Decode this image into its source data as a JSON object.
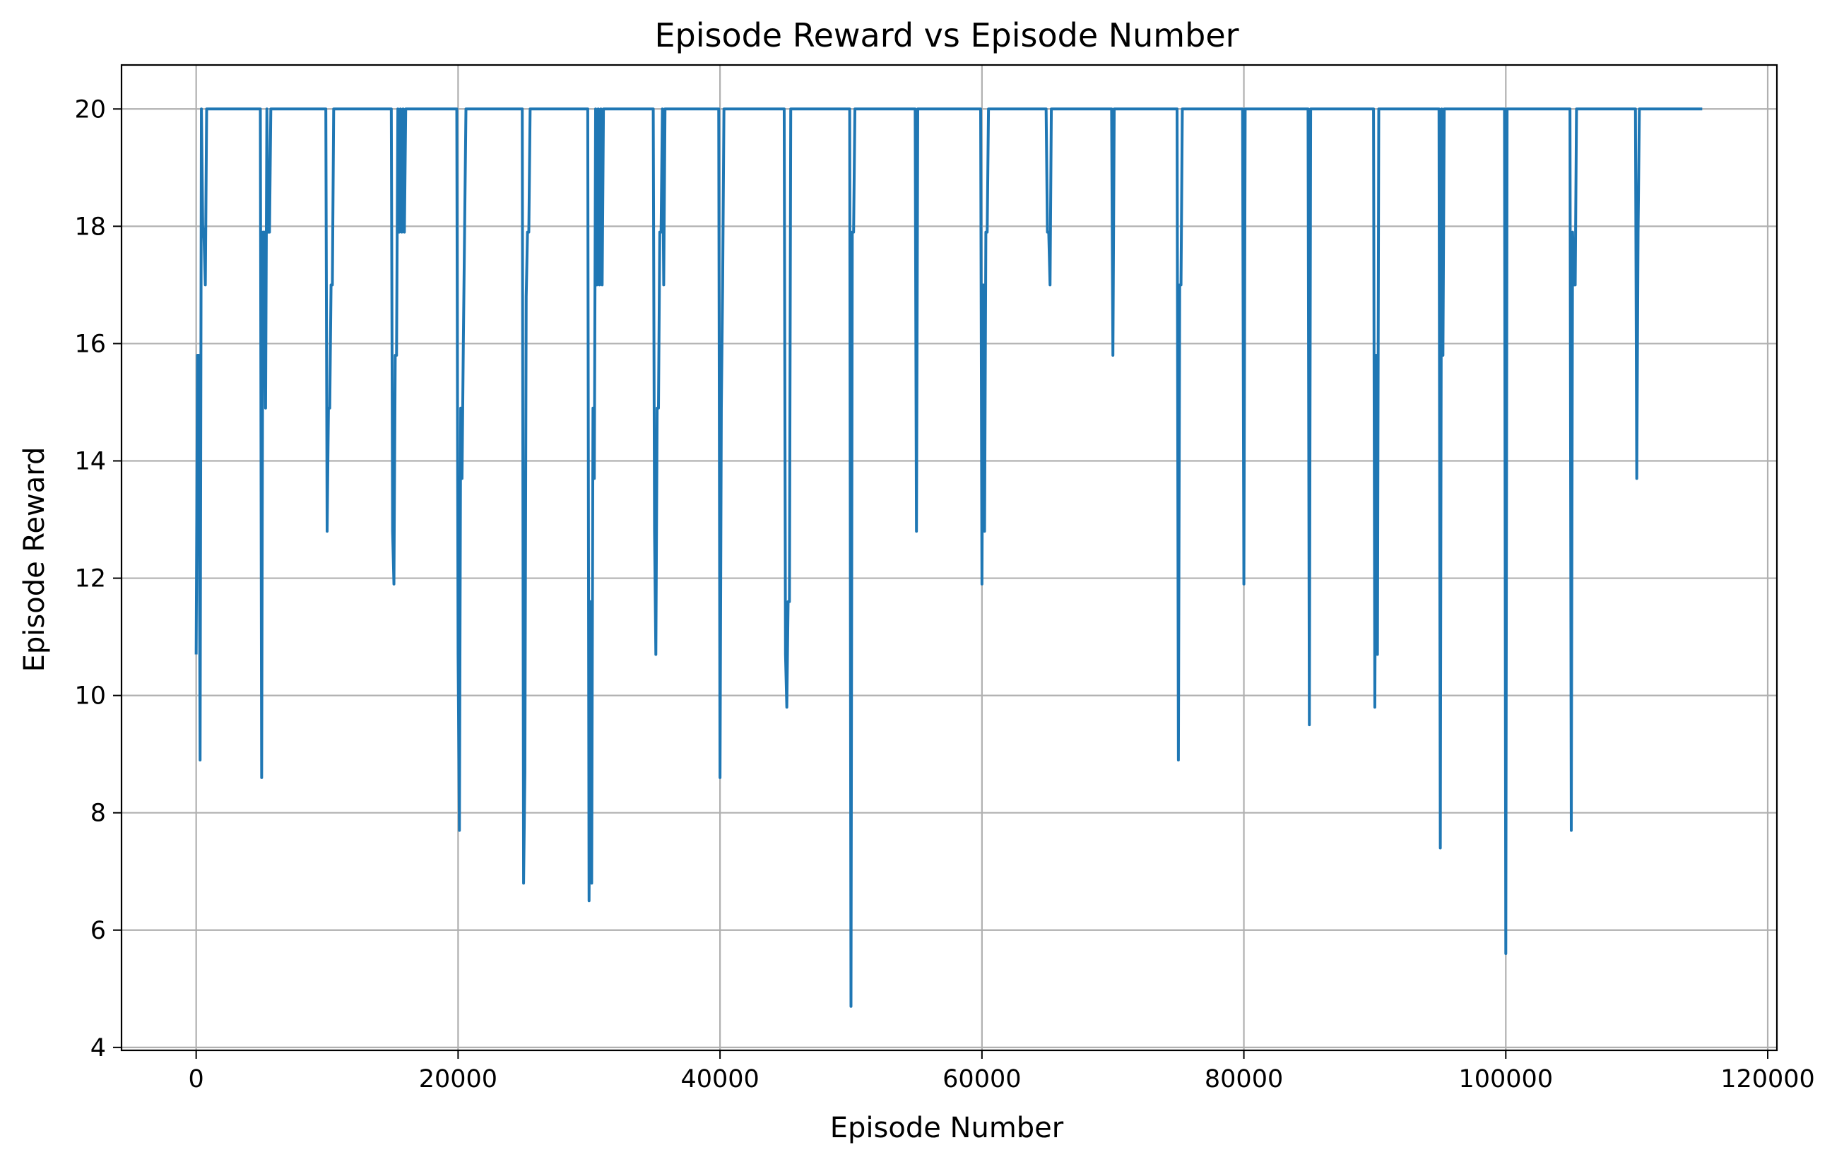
{
  "chart_data": {
    "type": "line",
    "title": "Episode Reward vs Episode Number",
    "xlabel": "Episode Number",
    "ylabel": "Episode Reward",
    "xlim": [
      -5700,
      120700
    ],
    "ylim": [
      3.95,
      20.75
    ],
    "xticks": [
      0,
      20000,
      40000,
      60000,
      80000,
      100000,
      120000
    ],
    "yticks": [
      4,
      6,
      8,
      10,
      12,
      14,
      16,
      18,
      20
    ],
    "grid": true,
    "series": [
      {
        "color": "#1f77b4",
        "x": [
          0,
          100,
          200,
          300,
          400,
          500,
          600,
          700,
          800,
          900,
          1000,
          4900,
          5000,
          5100,
          5200,
          5300,
          5400,
          5500,
          5600,
          5700,
          5800,
          5900,
          6000,
          9900,
          10000,
          10100,
          10200,
          10300,
          10400,
          10500,
          10600,
          10700,
          10800,
          10900,
          11000,
          14900,
          15000,
          15100,
          15200,
          15300,
          15400,
          15500,
          15600,
          15700,
          15800,
          15900,
          16000,
          16100,
          16200,
          16300,
          19900,
          20000,
          20100,
          20200,
          20300,
          20400,
          20500,
          20600,
          24900,
          25000,
          25100,
          25200,
          25300,
          25400,
          25500,
          25600,
          29900,
          30000,
          30100,
          30200,
          30300,
          30400,
          30500,
          30600,
          30700,
          30800,
          30900,
          31000,
          31100,
          31200,
          31300,
          31400,
          34900,
          35000,
          35100,
          35200,
          35300,
          35400,
          35500,
          35600,
          35700,
          35800,
          35900,
          36000,
          36100,
          39900,
          40000,
          40100,
          40200,
          40300,
          40400,
          44900,
          45000,
          45100,
          45200,
          45300,
          45400,
          45500,
          49900,
          50000,
          50100,
          50200,
          50300,
          50400,
          50500,
          54900,
          55000,
          55100,
          55200,
          59900,
          60000,
          60100,
          60200,
          60300,
          60400,
          60500,
          60600,
          64900,
          65000,
          65100,
          65200,
          65300,
          65400,
          65500,
          69900,
          70000,
          70100,
          70200,
          74900,
          75000,
          75100,
          75200,
          75300,
          75400,
          75500,
          79900,
          80000,
          80100,
          80200,
          84900,
          85000,
          85100,
          85200,
          89900,
          90000,
          90100,
          90200,
          90300,
          90400,
          90500,
          94900,
          95000,
          95100,
          95200,
          95300,
          99900,
          100000,
          100100,
          104900,
          105000,
          105100,
          105200,
          105300,
          105400,
          105500,
          105600,
          105700,
          109900,
          110000,
          110100,
          110200,
          110300,
          110400,
          115000
        ],
        "y": [
          10.7,
          15.8,
          15.8,
          8.9,
          20,
          18,
          17.8,
          17,
          20,
          20,
          20,
          20,
          8.6,
          17.9,
          17.9,
          14.9,
          20,
          17.9,
          17.9,
          20,
          20,
          20,
          20,
          20,
          12.8,
          14.9,
          14.9,
          17,
          17,
          20,
          20,
          20,
          20,
          20,
          20,
          20,
          12.8,
          11.9,
          15.8,
          15.8,
          20,
          17.9,
          20,
          17.9,
          20,
          17.9,
          20,
          20,
          20,
          20,
          20,
          10.7,
          7.7,
          14.9,
          13.7,
          16,
          18,
          20,
          20,
          6.8,
          8.7,
          16.8,
          17.9,
          17.9,
          20,
          20,
          20,
          6.5,
          11.6,
          6.8,
          14.9,
          13.7,
          20,
          17,
          20,
          17,
          20,
          17,
          20,
          20,
          20,
          20,
          20,
          12.8,
          10.7,
          14.9,
          14.9,
          17.9,
          17.9,
          20,
          17,
          20,
          20,
          20,
          20,
          20,
          8.6,
          14.9,
          17,
          20,
          20,
          20,
          10.7,
          9.8,
          11.6,
          11.6,
          20,
          20,
          20,
          4.7,
          17.9,
          17.9,
          20,
          20,
          20,
          20,
          12.8,
          20,
          20,
          20,
          11.9,
          17,
          12.8,
          17.9,
          17.9,
          20,
          20,
          20,
          17.9,
          17.9,
          17,
          20,
          20,
          20,
          20,
          15.8,
          20,
          20,
          20,
          8.9,
          17,
          17,
          20,
          20,
          20,
          20,
          11.9,
          20,
          20,
          20,
          9.5,
          20,
          20,
          20,
          9.8,
          15.8,
          10.7,
          20,
          20,
          20,
          20,
          7.4,
          20,
          15.8,
          20,
          20,
          5.6,
          20,
          20,
          7.7,
          17.9,
          17,
          17,
          20,
          20,
          20,
          20,
          20,
          13.7,
          17.9,
          20,
          20,
          20,
          20
        ]
      }
    ]
  }
}
